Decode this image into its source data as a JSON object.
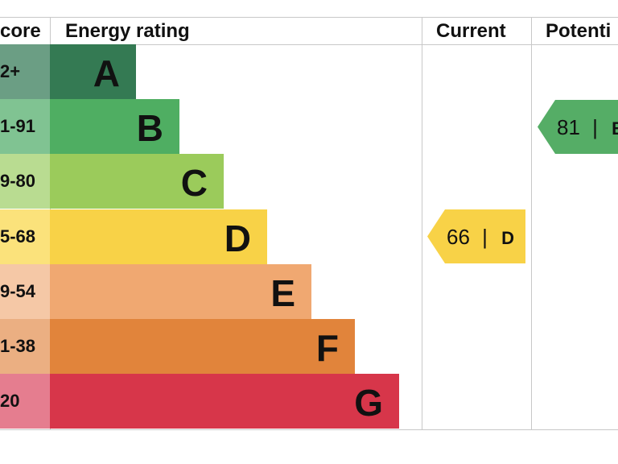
{
  "chart_data": {
    "type": "bar",
    "title": "",
    "headers": {
      "score": "core",
      "rating": "Energy rating",
      "current": "Current",
      "potential": "Potenti"
    },
    "categories": [
      "A",
      "B",
      "C",
      "D",
      "E",
      "F",
      "G"
    ],
    "score_ranges": [
      "2+",
      "1-91",
      "9-80",
      "5-68",
      "9-54",
      "1-38",
      "20"
    ],
    "bar_colors": [
      "#347a53",
      "#4fae62",
      "#9bcb5b",
      "#f8d247",
      "#f0a871",
      "#e1843b",
      "#d7364a"
    ],
    "score_colors": [
      "#6b9e84",
      "#80c392",
      "#b9dc91",
      "#fbe27b",
      "#f5c8a6",
      "#ebaf82",
      "#e57d8f"
    ],
    "current": {
      "value": 66,
      "band": "D",
      "separator": "|",
      "color": "#f8d247"
    },
    "potential": {
      "value": 81,
      "band": "B",
      "separator": "|",
      "color": "#55ad66"
    }
  }
}
